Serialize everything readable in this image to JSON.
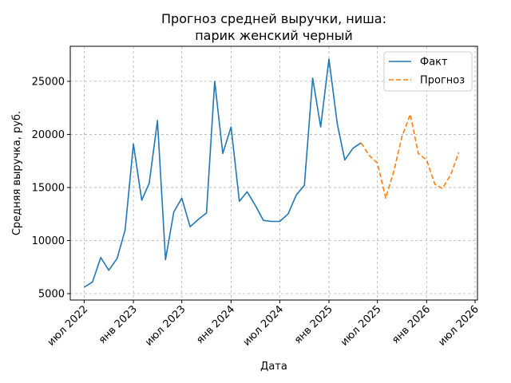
{
  "chart_data": {
    "type": "line",
    "title_line1": "Прогноз средней выручки, ниша:",
    "title_line2": "парик женский черный",
    "xlabel": "Дата",
    "ylabel": "Средняя выручка, руб.",
    "x_range": [
      "2022-05-10",
      "2026-07-10"
    ],
    "ylim": [
      4400,
      28300
    ],
    "yticks": [
      5000,
      10000,
      15000,
      20000,
      25000
    ],
    "xticks": [
      {
        "date": "2022-07-01",
        "label": "июл 2022"
      },
      {
        "date": "2023-01-01",
        "label": "янв 2023"
      },
      {
        "date": "2023-07-01",
        "label": "июл 2023"
      },
      {
        "date": "2024-01-01",
        "label": "янв 2024"
      },
      {
        "date": "2024-07-01",
        "label": "июл 2024"
      },
      {
        "date": "2025-01-01",
        "label": "янв 2025"
      },
      {
        "date": "2025-07-01",
        "label": "июл 2025"
      },
      {
        "date": "2026-01-01",
        "label": "янв 2026"
      },
      {
        "date": "2026-07-01",
        "label": "июл 2026"
      }
    ],
    "grid": true,
    "legend_position": "top-right",
    "series": [
      {
        "name": "Факт",
        "color": "#1f77b4",
        "style": "solid",
        "points": [
          [
            "2022-07-01",
            5600
          ],
          [
            "2022-08-01",
            6100
          ],
          [
            "2022-09-01",
            8400
          ],
          [
            "2022-10-01",
            7200
          ],
          [
            "2022-11-01",
            8300
          ],
          [
            "2022-12-01",
            11000
          ],
          [
            "2023-01-01",
            19100
          ],
          [
            "2023-02-01",
            13800
          ],
          [
            "2023-03-01",
            15400
          ],
          [
            "2023-04-01",
            21300
          ],
          [
            "2023-05-01",
            8200
          ],
          [
            "2023-06-01",
            12700
          ],
          [
            "2023-07-01",
            14000
          ],
          [
            "2023-08-01",
            11300
          ],
          [
            "2023-09-01",
            12000
          ],
          [
            "2023-10-01",
            12600
          ],
          [
            "2023-11-01",
            25000
          ],
          [
            "2023-12-01",
            18200
          ],
          [
            "2024-01-01",
            20700
          ],
          [
            "2024-02-01",
            13700
          ],
          [
            "2024-03-01",
            14600
          ],
          [
            "2024-04-01",
            13300
          ],
          [
            "2024-05-01",
            11900
          ],
          [
            "2024-06-01",
            11800
          ],
          [
            "2024-07-01",
            11800
          ],
          [
            "2024-08-01",
            12500
          ],
          [
            "2024-09-01",
            14300
          ],
          [
            "2024-10-01",
            15200
          ],
          [
            "2024-11-01",
            25300
          ],
          [
            "2024-12-01",
            20700
          ],
          [
            "2025-01-01",
            27100
          ],
          [
            "2025-02-01",
            21000
          ],
          [
            "2025-03-01",
            17600
          ],
          [
            "2025-04-01",
            18700
          ],
          [
            "2025-05-01",
            19200
          ]
        ]
      },
      {
        "name": "Прогноз",
        "color": "#ff7f0e",
        "style": "dashed",
        "points": [
          [
            "2025-05-01",
            19200
          ],
          [
            "2025-06-01",
            18000
          ],
          [
            "2025-07-01",
            17300
          ],
          [
            "2025-08-01",
            14000
          ],
          [
            "2025-09-01",
            16600
          ],
          [
            "2025-10-01",
            19800
          ],
          [
            "2025-11-01",
            21900
          ],
          [
            "2025-12-01",
            18200
          ],
          [
            "2026-01-01",
            17600
          ],
          [
            "2026-02-01",
            15300
          ],
          [
            "2026-03-01",
            14900
          ],
          [
            "2026-04-01",
            16200
          ],
          [
            "2026-05-01",
            18300
          ]
        ]
      }
    ]
  }
}
